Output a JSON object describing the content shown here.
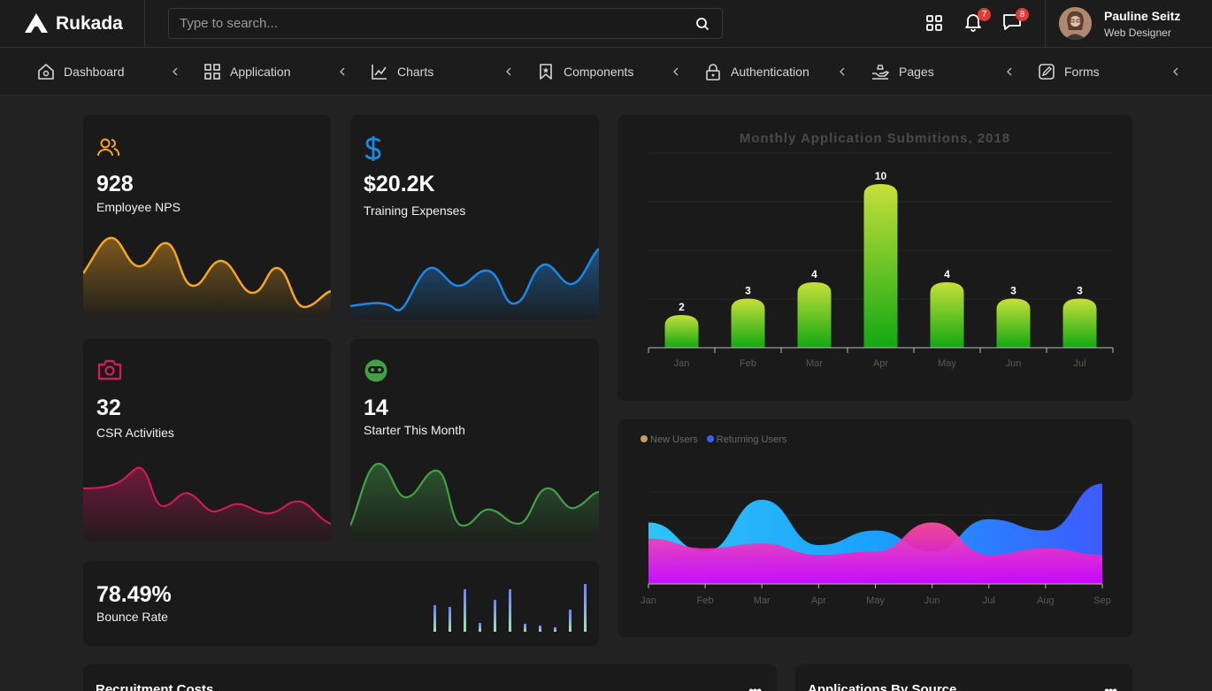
{
  "brand": {
    "name": "Rukada"
  },
  "search": {
    "placeholder": "Type to search..."
  },
  "header": {
    "notifications_count": "7",
    "messages_count": "8",
    "user_name": "Pauline Seitz",
    "user_role": "Web Designer"
  },
  "nav": [
    {
      "label": "Dashboard",
      "icon": "home-icon"
    },
    {
      "label": "Application",
      "icon": "grid-icon"
    },
    {
      "label": "Charts",
      "icon": "chart-line-icon"
    },
    {
      "label": "Components",
      "icon": "bookmark-icon"
    },
    {
      "label": "Authentication",
      "icon": "lock-icon"
    },
    {
      "label": "Pages",
      "icon": "hand-icon"
    },
    {
      "label": "Forms",
      "icon": "edit-icon"
    }
  ],
  "stats": [
    {
      "value": "928",
      "label": "Employee NPS",
      "icon": "users-icon",
      "color": "#f5a623"
    },
    {
      "value": "$20.2K",
      "label": "Training Expenses",
      "icon": "dollar-icon",
      "color": "#1e88e5"
    },
    {
      "value": "32",
      "label": "CSR Activities",
      "icon": "camera-icon",
      "color": "#d81b60"
    },
    {
      "value": "14",
      "label": "Starter This Month",
      "icon": "smile-icon",
      "color": "#43a047"
    },
    {
      "value": "78.49%",
      "label": "Bounce Rate",
      "icon": "bar-mini-icon",
      "color": "#7b8cff"
    }
  ],
  "chart_data": [
    {
      "type": "bar",
      "title": "Monthly Application Submitions, 2018",
      "categories": [
        "Jan",
        "Feb",
        "Mar",
        "Apr",
        "May",
        "Jun",
        "Jul"
      ],
      "values": [
        2,
        3,
        4,
        10,
        4,
        3,
        3
      ],
      "ylim": [
        0,
        10
      ],
      "grid": true,
      "colors": {
        "top": "#c6e03a",
        "bottom": "#12a812"
      }
    },
    {
      "type": "area",
      "categories": [
        "Jan",
        "Feb",
        "Mar",
        "Apr",
        "May",
        "Jun",
        "Jul",
        "Aug",
        "Sep"
      ],
      "series": [
        {
          "name": "New Users",
          "values": [
            28,
            22,
            25,
            18,
            20,
            38,
            18,
            22,
            18
          ]
        },
        {
          "name": "Returning Users",
          "values": [
            38,
            20,
            52,
            24,
            33,
            20,
            40,
            33,
            62
          ]
        }
      ],
      "legend": "top-left",
      "colors": {
        "New Users": "#c4a060",
        "Returning Users": "#3d5afe"
      }
    }
  ],
  "bottom": {
    "left_title": "Recruitment Costs",
    "right_title": "Applications By Source"
  }
}
